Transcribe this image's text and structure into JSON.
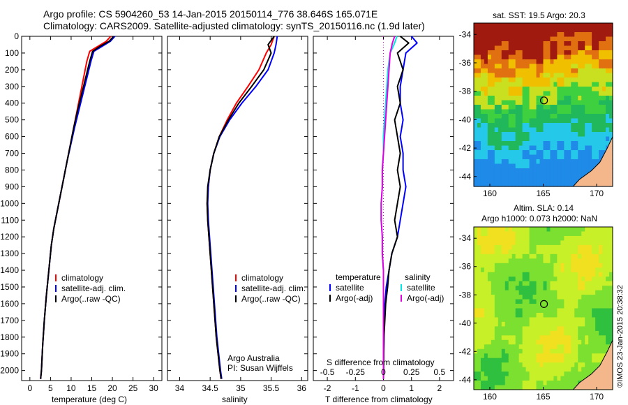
{
  "header": {
    "line1": "Argo profile: CS 5904260_53 14-Jan-2015 20150114_776 38.646S 165.071E",
    "line2": "Climatology: CARS2009. Satellite-adjusted climatology: synTS_20150116.nc (1.9d later)"
  },
  "colors": {
    "climatology": "#ff0000",
    "satellite": "#0000ff",
    "argo": "#000000",
    "salinity_satellite": "#00e5e5",
    "salinity_argo": "#e000e0",
    "land": "#f4b78c"
  },
  "chart_data": [
    {
      "type": "line",
      "name": "temperature",
      "xlabel": "temperature (deg C)",
      "xlim": [
        -2,
        32
      ],
      "xticks": [
        0,
        5,
        10,
        15,
        20,
        25,
        30
      ],
      "ylim": [
        0,
        2060
      ],
      "yticks": [
        0,
        100,
        200,
        300,
        400,
        500,
        600,
        700,
        800,
        900,
        1000,
        1100,
        1200,
        1300,
        1400,
        1500,
        1600,
        1700,
        1800,
        1900,
        2000
      ],
      "y_reversed": true,
      "legend": [
        "climatology",
        "satellite-adj. clim.",
        "Argo(..raw -QC)"
      ],
      "series": [
        {
          "name": "climatology",
          "color": "#ff0000",
          "x": [
            19.6,
            18.5,
            16.5,
            14.5,
            13.8,
            13.0,
            12.2,
            11.4,
            10.6,
            9.8,
            9.0,
            8.2,
            7.4,
            6.6,
            5.8,
            5.2,
            4.6,
            4.0,
            3.5,
            3.1,
            2.8,
            2.6
          ],
          "y": [
            0,
            30,
            60,
            90,
            150,
            250,
            350,
            450,
            550,
            650,
            750,
            850,
            950,
            1050,
            1150,
            1250,
            1400,
            1550,
            1700,
            1850,
            2000,
            2050
          ]
        },
        {
          "name": "satellite-adj. clim.",
          "color": "#0000ff",
          "x": [
            20.6,
            19.5,
            17.5,
            15.5,
            14.8,
            13.8,
            12.8,
            11.8,
            10.8,
            9.9,
            9.0,
            8.2,
            7.4,
            6.6,
            5.8,
            5.2,
            4.6,
            4.0,
            3.5,
            3.1,
            2.8,
            2.6
          ],
          "y": [
            0,
            30,
            60,
            90,
            150,
            250,
            350,
            450,
            550,
            650,
            750,
            850,
            950,
            1050,
            1150,
            1250,
            1400,
            1550,
            1700,
            1850,
            2000,
            2050
          ]
        },
        {
          "name": "Argo(..raw -QC)",
          "color": "#000000",
          "x": [
            20.3,
            19.2,
            17.0,
            15.2,
            14.5,
            13.5,
            12.5,
            11.5,
            10.6,
            9.8,
            9.0,
            8.2,
            7.4,
            6.6,
            5.8,
            5.2,
            4.6,
            4.0,
            3.5,
            3.1,
            2.8,
            2.6
          ],
          "y": [
            0,
            30,
            60,
            90,
            150,
            250,
            350,
            450,
            550,
            650,
            750,
            850,
            950,
            1050,
            1150,
            1250,
            1400,
            1550,
            1700,
            1850,
            2000,
            2050
          ]
        }
      ]
    },
    {
      "type": "line",
      "name": "salinity",
      "xlabel": "salinity",
      "xlim": [
        33.8,
        36.1
      ],
      "xticks": [
        34,
        34.5,
        35,
        35.5,
        36
      ],
      "xticklabels": [
        "34",
        "34.5",
        "35",
        "35.5",
        "36"
      ],
      "ylim": [
        0,
        2060
      ],
      "y_reversed": true,
      "legend": [
        "climatology",
        "satellite-adj. clim.",
        "Argo(..raw -QC)"
      ],
      "annotation": [
        "Argo Australia",
        "PI: Susan Wijffels"
      ],
      "series": [
        {
          "name": "climatology",
          "color": "#ff0000",
          "x": [
            35.55,
            35.5,
            35.42,
            35.3,
            35.12,
            34.93,
            34.78,
            34.65,
            34.56,
            34.5,
            34.47,
            34.45,
            34.46,
            34.48,
            34.52,
            34.56,
            34.6,
            34.63,
            34.66,
            34.68
          ],
          "y": [
            0,
            50,
            100,
            200,
            300,
            400,
            500,
            600,
            700,
            800,
            900,
            1000,
            1100,
            1200,
            1400,
            1600,
            1800,
            1900,
            2000,
            2050
          ]
        },
        {
          "name": "satellite-adj. clim.",
          "color": "#0000ff",
          "x": [
            35.6,
            35.58,
            35.55,
            35.45,
            35.25,
            35.02,
            34.82,
            34.66,
            34.56,
            34.5,
            34.47,
            34.46,
            34.47,
            34.49,
            34.53,
            34.57,
            34.61,
            34.64,
            34.67,
            34.69
          ],
          "y": [
            0,
            50,
            100,
            200,
            300,
            400,
            500,
            600,
            700,
            800,
            900,
            1000,
            1100,
            1200,
            1400,
            1600,
            1800,
            1900,
            2000,
            2050
          ]
        },
        {
          "name": "Argo(..raw -QC)",
          "color": "#000000",
          "x": [
            35.55,
            35.45,
            35.5,
            35.38,
            35.18,
            34.97,
            34.8,
            34.65,
            34.56,
            34.5,
            34.46,
            34.45,
            34.46,
            34.48,
            34.52,
            34.56,
            34.6,
            34.63,
            34.66,
            34.68
          ],
          "y": [
            0,
            50,
            100,
            200,
            300,
            400,
            500,
            600,
            700,
            800,
            900,
            1000,
            1100,
            1200,
            1400,
            1600,
            1800,
            1900,
            2000,
            2050
          ]
        }
      ]
    },
    {
      "type": "line",
      "name": "differences",
      "xlabel_bottom": "T difference from climatology",
      "xlabel_top": "S difference from climatology",
      "xlim": [
        -2.5,
        2.5
      ],
      "xticks": [
        -2,
        -1,
        0,
        1,
        2
      ],
      "top_ticks": [
        -0.5,
        -0.25,
        0,
        0.25,
        0.5
      ],
      "top_ticklabels": [
        "-0.5",
        "-0.25",
        "0",
        "0.25",
        "0.5"
      ],
      "ylim": [
        0,
        2060
      ],
      "y_reversed": true,
      "legend_left_title": "temperature",
      "legend_right_title": "salinity",
      "legend": [
        "satellite",
        "Argo(-adj)",
        "satellite",
        "Argo(-adj)"
      ],
      "series": [
        {
          "name": "T satellite",
          "color": "#0000ff",
          "x": [
            1.0,
            1.2,
            0.8,
            0.7,
            0.6,
            0.6,
            0.7,
            0.6,
            0.7,
            0.7,
            0.8,
            0.7,
            0.6,
            0.5,
            0.3,
            0.2,
            0.1,
            0.05,
            0.02,
            0.0
          ],
          "y": [
            0,
            40,
            100,
            200,
            300,
            400,
            500,
            600,
            700,
            800,
            900,
            1000,
            1100,
            1200,
            1300,
            1400,
            1500,
            1600,
            1800,
            2050
          ]
        },
        {
          "name": "T Argo(-adj)",
          "color": "#000000",
          "x": [
            0.6,
            0.9,
            0.5,
            0.7,
            0.5,
            0.6,
            0.4,
            0.5,
            0.6,
            0.5,
            0.6,
            0.5,
            0.4,
            0.5,
            0.3,
            0.2,
            0.15,
            0.08,
            0.02,
            0.0
          ],
          "y": [
            0,
            40,
            100,
            200,
            300,
            400,
            500,
            600,
            700,
            800,
            900,
            1000,
            1100,
            1200,
            1300,
            1400,
            1500,
            1600,
            1800,
            2050
          ]
        },
        {
          "name": "S satellite",
          "color": "#00e5e5",
          "x": [
            0.12,
            0.1,
            0.06,
            0.04,
            0.03,
            0.02,
            0.01,
            0.0,
            0.0,
            -0.01,
            -0.01,
            -0.02,
            -0.02,
            -0.01,
            -0.01,
            0.0,
            0.0,
            0.0,
            0.0,
            0.0
          ],
          "y": [
            0,
            40,
            100,
            200,
            300,
            400,
            500,
            600,
            700,
            800,
            900,
            1000,
            1100,
            1200,
            1300,
            1400,
            1500,
            1600,
            1800,
            2050
          ]
        },
        {
          "name": "S Argo(-adj)",
          "color": "#e000e0",
          "x": [
            0.1,
            0.08,
            0.06,
            0.05,
            0.04,
            0.03,
            0.02,
            0.01,
            0.0,
            -0.01,
            -0.01,
            -0.02,
            -0.02,
            -0.01,
            -0.01,
            0.0,
            0.0,
            0.0,
            0.0,
            0.0
          ],
          "y": [
            0,
            40,
            100,
            200,
            300,
            400,
            500,
            600,
            700,
            800,
            900,
            1000,
            1100,
            1200,
            1300,
            1400,
            1500,
            1600,
            1800,
            2050
          ]
        }
      ]
    },
    {
      "type": "heatmap",
      "name": "sst_map",
      "title": "sat. SST: 19.5 Argo: 20.3",
      "xlim": [
        158.5,
        171.5
      ],
      "ylim": [
        -44.7,
        -33.2
      ],
      "xticks": [
        160,
        165,
        170
      ],
      "yticks": [
        -34,
        -36,
        -38,
        -40,
        -42,
        -44
      ],
      "marker": {
        "lon": 165.071,
        "lat": -38.646
      }
    },
    {
      "type": "heatmap",
      "name": "sla_map",
      "title_line1": "Altim. SLA: 0.14",
      "title_line2": "Argo h1000: 0.073 h2000: NaN",
      "xlim": [
        158.5,
        171.5
      ],
      "ylim": [
        -44.7,
        -33.2
      ],
      "xticks": [
        160,
        165,
        170
      ],
      "yticks": [
        -34,
        -36,
        -38,
        -40,
        -42,
        -44
      ],
      "marker": {
        "lon": 165.071,
        "lat": -38.646
      }
    }
  ],
  "watermark": "©IMOS 23-Jan-2015 20:38:32"
}
